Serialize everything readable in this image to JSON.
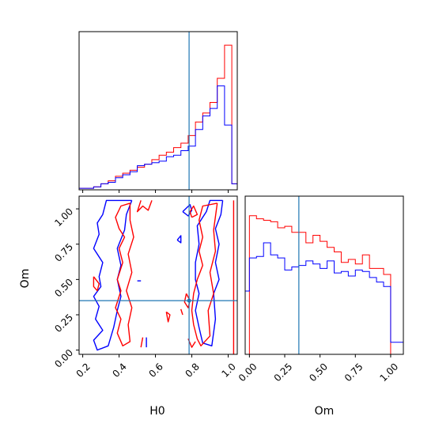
{
  "chart_data": {
    "type": "corner",
    "parameters": [
      "H0",
      "Om"
    ],
    "colors": {
      "red": "#ff0000",
      "blue": "#0000ff",
      "truth": "#1f77b4"
    },
    "truth": {
      "H0": 0.785,
      "Om": 0.35
    },
    "axes": {
      "H0": {
        "label": "H0",
        "range": [
          0.18,
          1.05
        ],
        "ticks": [
          0.2,
          0.4,
          0.6,
          0.8,
          1.0
        ],
        "tick_labels": [
          "0.2",
          "0.4",
          "0.6",
          "0.8",
          "1.0"
        ]
      },
      "Om": {
        "label": "Om",
        "range": [
          -0.03,
          1.09
        ],
        "ticks": [
          0.0,
          0.25,
          0.5,
          0.75,
          1.0
        ],
        "tick_labels": [
          "0.00",
          "0.25",
          "0.50",
          "0.75",
          "1.00"
        ]
      }
    },
    "hist_H0": {
      "bin_edges": [
        0.18,
        0.22,
        0.26,
        0.3,
        0.34,
        0.38,
        0.42,
        0.46,
        0.5,
        0.54,
        0.58,
        0.62,
        0.66,
        0.7,
        0.74,
        0.78,
        0.82,
        0.86,
        0.9,
        0.94,
        0.98,
        1.02,
        1.05
      ],
      "max": 1.0,
      "series": [
        {
          "color": "red",
          "values": [
            0.01,
            0.01,
            0.02,
            0.04,
            0.06,
            0.09,
            0.11,
            0.13,
            0.15,
            0.17,
            0.2,
            0.23,
            0.25,
            0.28,
            0.31,
            0.36,
            0.45,
            0.51,
            0.58,
            0.74,
            0.96,
            0.04,
            0.0
          ]
        },
        {
          "color": "blue",
          "values": [
            0.01,
            0.01,
            0.02,
            0.04,
            0.05,
            0.08,
            0.1,
            0.12,
            0.16,
            0.17,
            0.18,
            0.19,
            0.22,
            0.23,
            0.26,
            0.29,
            0.4,
            0.49,
            0.54,
            0.69,
            0.43,
            0.04,
            0.0
          ]
        }
      ]
    },
    "hist_Om": {
      "bin_edges": [
        -0.03,
        0.0,
        0.05,
        0.1,
        0.15,
        0.2,
        0.25,
        0.3,
        0.35,
        0.4,
        0.45,
        0.5,
        0.55,
        0.6,
        0.65,
        0.7,
        0.75,
        0.8,
        0.85,
        0.9,
        0.95,
        1.0,
        1.05,
        1.09
      ],
      "max": 1.0,
      "series": [
        {
          "color": "red",
          "values": [
            0.0,
            0.92,
            0.9,
            0.89,
            0.88,
            0.84,
            0.85,
            0.81,
            0.81,
            0.74,
            0.79,
            0.75,
            0.71,
            0.68,
            0.61,
            0.63,
            0.6,
            0.66,
            0.57,
            0.57,
            0.53,
            0.0,
            0.0,
            0.0
          ]
        },
        {
          "color": "blue",
          "values": [
            0.42,
            0.64,
            0.65,
            0.74,
            0.66,
            0.64,
            0.56,
            0.58,
            0.59,
            0.62,
            0.6,
            0.57,
            0.62,
            0.54,
            0.55,
            0.52,
            0.56,
            0.55,
            0.51,
            0.48,
            0.45,
            0.08,
            0.08,
            0.0
          ]
        }
      ]
    },
    "contours": [
      {
        "color": "blue",
        "points": [
          [
            0.97,
            1.06
          ],
          [
            0.9,
            1.06
          ],
          [
            0.88,
            0.98
          ],
          [
            0.83,
            0.88
          ],
          [
            0.84,
            0.75
          ],
          [
            0.82,
            0.62
          ],
          [
            0.82,
            0.5
          ],
          [
            0.84,
            0.4
          ],
          [
            0.82,
            0.28
          ],
          [
            0.84,
            0.16
          ],
          [
            0.86,
            0.05
          ],
          [
            0.91,
            0.03
          ],
          [
            0.93,
            0.22
          ],
          [
            0.92,
            0.4
          ],
          [
            0.95,
            0.5
          ],
          [
            0.93,
            0.62
          ],
          [
            0.95,
            0.75
          ],
          [
            0.93,
            0.86
          ],
          [
            0.96,
            0.96
          ],
          [
            0.97,
            1.06
          ]
        ]
      },
      {
        "color": "blue",
        "points": [
          [
            0.47,
            1.06
          ],
          [
            0.33,
            1.06
          ],
          [
            0.31,
            0.96
          ],
          [
            0.28,
            0.9
          ],
          [
            0.29,
            0.82
          ],
          [
            0.26,
            0.72
          ],
          [
            0.31,
            0.62
          ],
          [
            0.29,
            0.52
          ],
          [
            0.3,
            0.45
          ],
          [
            0.26,
            0.38
          ],
          [
            0.29,
            0.31
          ],
          [
            0.27,
            0.22
          ],
          [
            0.31,
            0.14
          ],
          [
            0.26,
            0.07
          ],
          [
            0.28,
            0.0
          ],
          [
            0.34,
            0.03
          ],
          [
            0.37,
            0.16
          ],
          [
            0.39,
            0.28
          ],
          [
            0.41,
            0.38
          ],
          [
            0.39,
            0.5
          ],
          [
            0.41,
            0.6
          ],
          [
            0.39,
            0.72
          ],
          [
            0.43,
            0.85
          ],
          [
            0.44,
            0.96
          ],
          [
            0.47,
            1.06
          ]
        ]
      },
      {
        "color": "blue",
        "points": [
          [
            0.75,
            0.98
          ],
          [
            0.78,
            0.95
          ],
          [
            0.8,
            0.99
          ],
          [
            0.79,
            1.03
          ],
          [
            0.75,
            0.98
          ]
        ]
      },
      {
        "color": "blue",
        "points": [
          [
            0.72,
            0.78
          ],
          [
            0.74,
            0.76
          ],
          [
            0.74,
            0.81
          ],
          [
            0.72,
            0.78
          ]
        ]
      },
      {
        "color": "blue",
        "points": [
          [
            0.5,
            0.49
          ],
          [
            0.52,
            0.49
          ]
        ]
      },
      {
        "color": "blue",
        "points": [
          [
            0.55,
            0.02
          ],
          [
            0.55,
            0.09
          ]
        ]
      },
      {
        "color": "red",
        "points": [
          [
            0.94,
            1.04
          ],
          [
            0.86,
            1.02
          ],
          [
            0.84,
            0.92
          ],
          [
            0.86,
            0.8
          ],
          [
            0.84,
            0.7
          ],
          [
            0.86,
            0.6
          ],
          [
            0.83,
            0.5
          ],
          [
            0.81,
            0.4
          ],
          [
            0.8,
            0.28
          ],
          [
            0.81,
            0.18
          ],
          [
            0.83,
            0.08
          ],
          [
            0.85,
            0.03
          ],
          [
            0.9,
            0.1
          ],
          [
            0.89,
            0.28
          ],
          [
            0.92,
            0.4
          ],
          [
            0.9,
            0.55
          ],
          [
            0.93,
            0.7
          ],
          [
            0.92,
            0.85
          ],
          [
            0.94,
            1.04
          ]
        ]
      },
      {
        "color": "red",
        "points": [
          [
            0.8,
            0.94
          ],
          [
            0.83,
            0.96
          ],
          [
            0.81,
            1.02
          ],
          [
            0.79,
            0.98
          ],
          [
            0.8,
            0.94
          ]
        ]
      },
      {
        "color": "red",
        "points": [
          [
            0.77,
            0.4
          ],
          [
            0.79,
            0.35
          ],
          [
            0.78,
            0.3
          ],
          [
            0.76,
            0.34
          ],
          [
            0.77,
            0.4
          ]
        ]
      },
      {
        "color": "red",
        "points": [
          [
            0.78,
            0.08
          ],
          [
            0.8,
            0.02
          ],
          [
            0.82,
            0.06
          ]
        ]
      },
      {
        "color": "red",
        "points": [
          [
            0.74,
            0.29
          ],
          [
            0.75,
            0.25
          ]
        ]
      },
      {
        "color": "red",
        "points": [
          [
            0.46,
            1.04
          ],
          [
            0.41,
            1.02
          ],
          [
            0.38,
            0.94
          ],
          [
            0.4,
            0.86
          ],
          [
            0.43,
            0.8
          ],
          [
            0.4,
            0.72
          ],
          [
            0.42,
            0.62
          ],
          [
            0.39,
            0.5
          ],
          [
            0.41,
            0.42
          ],
          [
            0.38,
            0.3
          ],
          [
            0.41,
            0.22
          ],
          [
            0.39,
            0.12
          ],
          [
            0.42,
            0.03
          ],
          [
            0.46,
            0.06
          ],
          [
            0.45,
            0.18
          ],
          [
            0.47,
            0.3
          ],
          [
            0.44,
            0.42
          ],
          [
            0.47,
            0.55
          ],
          [
            0.45,
            0.68
          ],
          [
            0.48,
            0.8
          ],
          [
            0.46,
            0.92
          ],
          [
            0.46,
            1.04
          ]
        ]
      },
      {
        "color": "red",
        "points": [
          [
            0.26,
            0.52
          ],
          [
            0.29,
            0.47
          ],
          [
            0.28,
            0.42
          ],
          [
            0.26,
            0.45
          ],
          [
            0.26,
            0.52
          ]
        ]
      },
      {
        "color": "red",
        "points": [
          [
            0.58,
            1.06
          ],
          [
            0.56,
            0.99
          ],
          [
            0.53,
            1.02
          ],
          [
            0.5,
            0.98
          ],
          [
            0.52,
            1.06
          ]
        ]
      },
      {
        "color": "red",
        "points": [
          [
            0.52,
            0.02
          ],
          [
            0.53,
            0.09
          ]
        ]
      },
      {
        "color": "red",
        "points": [
          [
            0.66,
            0.27
          ],
          [
            0.68,
            0.25
          ],
          [
            0.67,
            0.2
          ],
          [
            0.66,
            0.27
          ]
        ]
      },
      {
        "color": "red",
        "points": [
          [
            1.03,
            1.06
          ],
          [
            1.03,
            -0.03
          ]
        ]
      }
    ]
  }
}
